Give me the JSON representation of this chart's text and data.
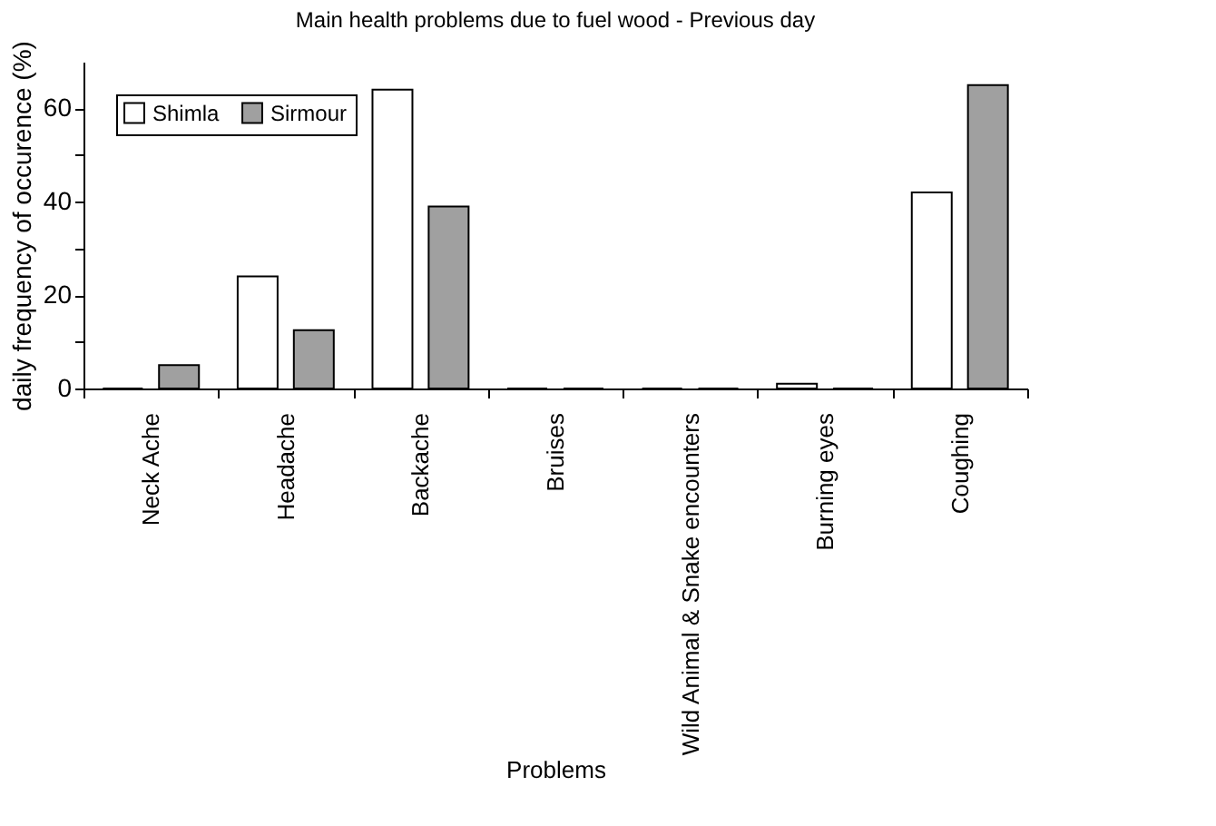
{
  "chart_data": {
    "type": "bar",
    "title": "Main health problems due to fuel wood - Previous day",
    "xlabel": "Problems",
    "ylabel": "daily frequency of occurence (%)",
    "categories": [
      "Neck Ache",
      "Headache",
      "Backache",
      "Bruises",
      "Wild Animal & Snake encounters",
      "Burning eyes",
      "Coughing"
    ],
    "series": [
      {
        "name": "Shimla",
        "color": "#ffffff",
        "values": [
          0,
          24,
          64,
          0,
          0,
          1,
          42
        ]
      },
      {
        "name": "Sirmour",
        "color": "#a0a0a0",
        "values": [
          5,
          12.5,
          39,
          0,
          0,
          0,
          65
        ]
      }
    ],
    "ylim": [
      0,
      70
    ],
    "yticks": [
      0,
      {
        "value": 10,
        "label": null
      },
      20,
      {
        "value": 30,
        "label": null
      },
      40,
      {
        "value": 50,
        "label": null
      },
      60
    ],
    "grid": false,
    "legend": "top left"
  }
}
